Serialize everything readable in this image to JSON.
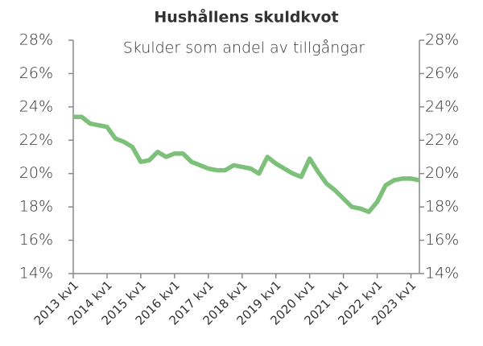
{
  "chart_data": {
    "type": "line",
    "title": "Hushållens skuldkvot",
    "subtitle": "Skulder som andel av tillgångar",
    "categories": [
      "2013 kv1",
      null,
      null,
      null,
      "2014 kv1",
      null,
      null,
      null,
      "2015 kv1",
      null,
      null,
      null,
      "2016 kv1",
      null,
      null,
      null,
      "2017 kv1",
      null,
      null,
      null,
      "2018 kv1",
      null,
      null,
      null,
      "2019 kv1",
      null,
      null,
      null,
      "2020 kv1",
      null,
      null,
      null,
      "2021 kv1",
      null,
      null,
      null,
      "2022 kv1",
      null,
      null,
      null,
      "2023 kv1",
      null
    ],
    "series": [
      {
        "color": "#7cc07a",
        "values": [
          23.4,
          23.4,
          23.0,
          22.9,
          22.8,
          22.1,
          21.9,
          21.6,
          20.7,
          20.8,
          21.3,
          21.0,
          21.2,
          21.2,
          20.7,
          20.5,
          20.3,
          20.2,
          20.2,
          20.5,
          20.4,
          20.3,
          20.0,
          21.0,
          20.6,
          20.3,
          20.0,
          19.8,
          20.9,
          20.1,
          19.4,
          19.0,
          18.5,
          18.0,
          17.9,
          17.7,
          18.3,
          19.3,
          19.6,
          19.7,
          19.7,
          19.6
        ]
      }
    ],
    "ylim": [
      14,
      28
    ],
    "yticks": [
      {
        "value": 14,
        "label": "14%"
      },
      {
        "value": 16,
        "label": "16%"
      },
      {
        "value": 18,
        "label": "18%"
      },
      {
        "value": 20,
        "label": "20%"
      },
      {
        "value": 22,
        "label": "22%"
      },
      {
        "value": 24,
        "label": "24%"
      },
      {
        "value": 26,
        "label": "26%"
      },
      {
        "value": 28,
        "label": "28%"
      }
    ],
    "y2lim": [
      14,
      28
    ],
    "y2ticks": [
      {
        "value": 14,
        "label": "14%"
      },
      {
        "value": 16,
        "label": "16%"
      },
      {
        "value": 18,
        "label": "18%"
      },
      {
        "value": 20,
        "label": "20%"
      },
      {
        "value": 22,
        "label": "22%"
      },
      {
        "value": 24,
        "label": "24%"
      },
      {
        "value": 26,
        "label": "26%"
      },
      {
        "value": 28,
        "label": "28%"
      }
    ]
  }
}
